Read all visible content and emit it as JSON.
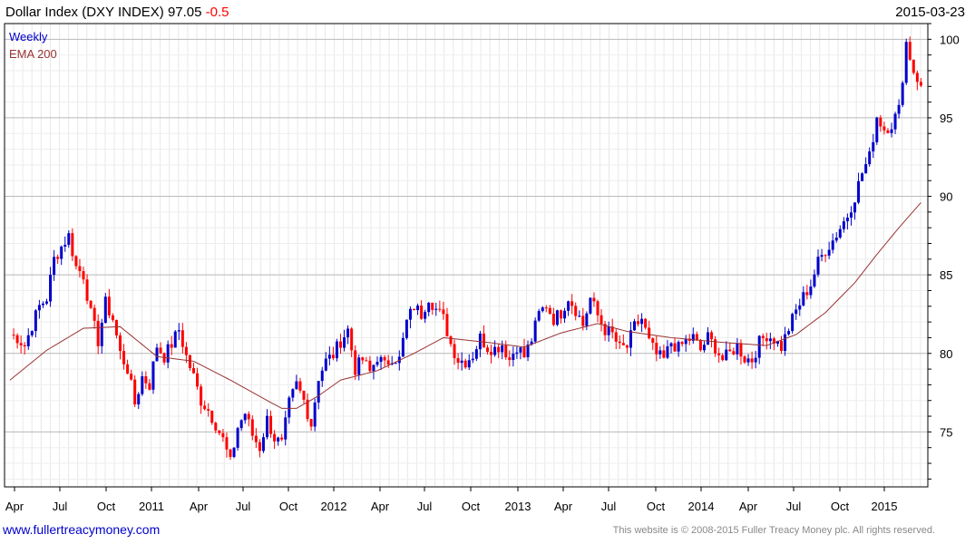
{
  "header": {
    "title": "Dollar Index (DXY INDEX) 97.05",
    "change": "-0.5",
    "date": "2015-03-23"
  },
  "footer": {
    "left": "www.fullertreacymoney.com",
    "right": "This website is © 2008-2015 Fuller Treacy Money plc. All rights reserved."
  },
  "colors": {
    "up": "#0000cc",
    "down": "#ff0000",
    "ema": "#993333",
    "grid": "#cccccc"
  },
  "chart_data": {
    "type": "candlestick",
    "legend": [
      "Weekly",
      "EMA 200"
    ],
    "legend_position": "top-left",
    "y_axis_side": "right",
    "ylim": [
      71.5,
      101
    ],
    "y_ticks": [
      75,
      80,
      85,
      90,
      95,
      100
    ],
    "x_ticks": [
      "Apr",
      "Jul",
      "Oct",
      "2011",
      "Apr",
      "Jul",
      "Oct",
      "2012",
      "Apr",
      "Jul",
      "Oct",
      "2013",
      "Apr",
      "Jul",
      "Oct",
      "2014",
      "Apr",
      "Jul",
      "Oct",
      "2015"
    ],
    "grid": true,
    "weekly_close_path": [
      [
        0,
        81.2
      ],
      [
        2,
        81.0
      ],
      [
        4,
        80.5
      ],
      [
        6,
        81.8
      ],
      [
        8,
        83.0
      ],
      [
        10,
        83.5
      ],
      [
        12,
        86.0
      ],
      [
        14,
        86.8
      ],
      [
        16,
        87.5
      ],
      [
        18,
        85.5
      ],
      [
        20,
        85.0
      ],
      [
        22,
        82.5
      ],
      [
        24,
        80.8
      ],
      [
        26,
        83.2
      ],
      [
        28,
        82.2
      ],
      [
        30,
        80.0
      ],
      [
        32,
        79.0
      ],
      [
        34,
        76.8
      ],
      [
        36,
        78.5
      ],
      [
        38,
        78.0
      ],
      [
        40,
        80.5
      ],
      [
        42,
        79.8
      ],
      [
        44,
        80.6
      ],
      [
        46,
        81.5
      ],
      [
        48,
        79.8
      ],
      [
        50,
        78.5
      ],
      [
        52,
        77.0
      ],
      [
        54,
        76.4
      ],
      [
        56,
        75.5
      ],
      [
        58,
        74.5
      ],
      [
        60,
        73.0
      ],
      [
        62,
        75.3
      ],
      [
        64,
        76.2
      ],
      [
        66,
        74.8
      ],
      [
        68,
        74.0
      ],
      [
        70,
        75.8
      ],
      [
        72,
        74.6
      ],
      [
        74,
        74.2
      ],
      [
        76,
        76.8
      ],
      [
        78,
        78.0
      ],
      [
        80,
        77.0
      ],
      [
        82,
        75.5
      ],
      [
        84,
        78.5
      ],
      [
        86,
        79.5
      ],
      [
        88,
        79.9
      ],
      [
        90,
        80.8
      ],
      [
        92,
        81.5
      ],
      [
        94,
        79.0
      ],
      [
        96,
        79.6
      ],
      [
        98,
        78.8
      ],
      [
        100,
        79.8
      ],
      [
        102,
        79.2
      ],
      [
        104,
        79.8
      ],
      [
        106,
        79.6
      ],
      [
        108,
        82.0
      ],
      [
        110,
        83.0
      ],
      [
        112,
        82.5
      ],
      [
        114,
        83.6
      ],
      [
        116,
        82.8
      ],
      [
        118,
        82.2
      ],
      [
        120,
        80.6
      ],
      [
        122,
        79.6
      ],
      [
        124,
        79.5
      ],
      [
        126,
        79.9
      ],
      [
        128,
        81.0
      ],
      [
        130,
        80.4
      ],
      [
        132,
        80.3
      ],
      [
        134,
        80.6
      ],
      [
        136,
        79.6
      ],
      [
        138,
        80.5
      ],
      [
        140,
        79.8
      ],
      [
        142,
        80.9
      ],
      [
        144,
        82.5
      ],
      [
        146,
        83.1
      ],
      [
        148,
        82.2
      ],
      [
        150,
        82.6
      ],
      [
        152,
        83.6
      ],
      [
        154,
        82.8
      ],
      [
        156,
        81.8
      ],
      [
        158,
        83.5
      ],
      [
        160,
        82.4
      ],
      [
        162,
        81.5
      ],
      [
        164,
        81.2
      ],
      [
        166,
        80.3
      ],
      [
        168,
        80.4
      ],
      [
        170,
        81.7
      ],
      [
        172,
        82.2
      ],
      [
        174,
        80.7
      ],
      [
        176,
        79.9
      ],
      [
        178,
        79.6
      ],
      [
        180,
        80.7
      ],
      [
        182,
        80.3
      ],
      [
        184,
        80.8
      ],
      [
        186,
        81.0
      ],
      [
        188,
        80.2
      ],
      [
        190,
        81.0
      ],
      [
        192,
        80.4
      ],
      [
        194,
        79.6
      ],
      [
        196,
        80.0
      ],
      [
        198,
        80.5
      ],
      [
        200,
        79.7
      ],
      [
        202,
        79.6
      ],
      [
        204,
        80.7
      ],
      [
        206,
        81.2
      ],
      [
        208,
        80.9
      ],
      [
        210,
        80.4
      ],
      [
        212,
        81.6
      ],
      [
        214,
        82.7
      ],
      [
        216,
        83.6
      ],
      [
        218,
        84.4
      ],
      [
        220,
        85.8
      ],
      [
        222,
        86.6
      ],
      [
        224,
        87.2
      ],
      [
        226,
        88.0
      ],
      [
        228,
        88.8
      ],
      [
        230,
        90.0
      ],
      [
        232,
        91.5
      ],
      [
        234,
        92.5
      ],
      [
        236,
        95.1
      ],
      [
        238,
        94.3
      ],
      [
        240,
        94.6
      ],
      [
        242,
        95.5
      ],
      [
        244,
        99.8
      ],
      [
        246,
        98.0
      ],
      [
        248,
        97.05
      ]
    ],
    "ema_200_path": [
      [
        0,
        78.3
      ],
      [
        10,
        80.2
      ],
      [
        20,
        81.6
      ],
      [
        30,
        81.7
      ],
      [
        40,
        79.8
      ],
      [
        50,
        79.5
      ],
      [
        60,
        78.3
      ],
      [
        70,
        77.0
      ],
      [
        74,
        76.5
      ],
      [
        78,
        76.5
      ],
      [
        84,
        77.3
      ],
      [
        90,
        78.3
      ],
      [
        100,
        78.9
      ],
      [
        110,
        80.0
      ],
      [
        118,
        81.0
      ],
      [
        130,
        80.7
      ],
      [
        140,
        80.4
      ],
      [
        150,
        81.3
      ],
      [
        160,
        81.9
      ],
      [
        168,
        81.4
      ],
      [
        180,
        81.0
      ],
      [
        194,
        80.7
      ],
      [
        206,
        80.5
      ],
      [
        214,
        81.2
      ],
      [
        222,
        82.6
      ],
      [
        230,
        84.5
      ],
      [
        236,
        86.3
      ],
      [
        242,
        88.0
      ],
      [
        248,
        89.6
      ]
    ]
  }
}
